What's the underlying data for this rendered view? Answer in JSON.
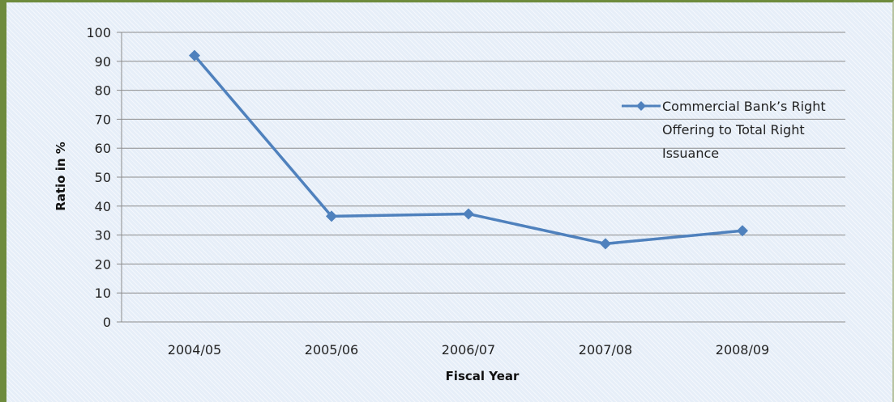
{
  "chart_data": {
    "type": "line",
    "categories": [
      "2004/05",
      "2005/06",
      "2006/07",
      "2007/08",
      "2008/09"
    ],
    "series": [
      {
        "name": "Commercial Bank's Right Offering to Total Right Issuance",
        "values": [
          92,
          36.5,
          37.3,
          27,
          31.5
        ],
        "color": "#4f81bd"
      }
    ],
    "ylim": [
      0,
      100
    ],
    "yticks": [
      0,
      10,
      20,
      30,
      40,
      50,
      60,
      70,
      80,
      90,
      100
    ],
    "xlabel": "Fiscal Year",
    "ylabel": "Ratio in %",
    "legend": {
      "position": "right",
      "lines": [
        "Commercial Bank’s Right",
        "Offering to Total Right",
        "Issuance"
      ]
    },
    "grid": true,
    "colors": {
      "gridline": "#8c8c8c",
      "frame": "#6e8b3d",
      "background": "#e6eef8"
    }
  }
}
